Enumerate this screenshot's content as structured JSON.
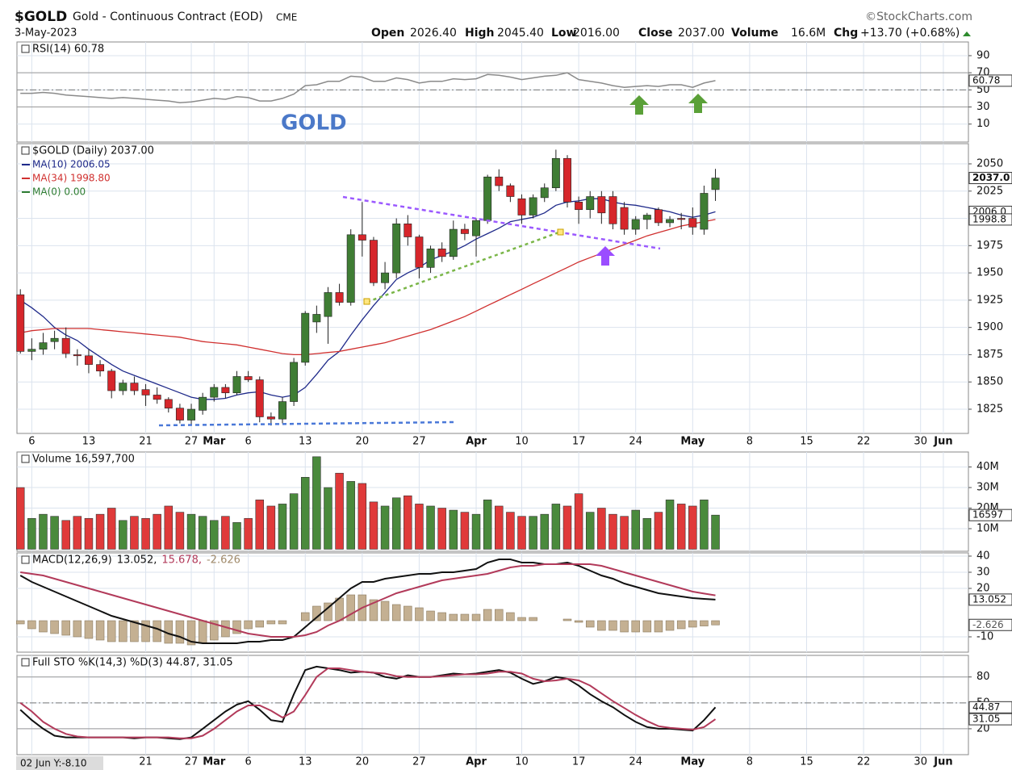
{
  "header": {
    "symbol": "$GOLD",
    "name": "Gold - Continuous Contract (EOD)",
    "exchange": "CME",
    "source": "©StockCharts.com",
    "date": "3-May-2023",
    "stats": [
      [
        "Open",
        "2026.40"
      ],
      [
        "High",
        "2045.40"
      ],
      [
        "Low",
        "2016.00"
      ],
      [
        "Close",
        "2037.00"
      ],
      [
        "Volume",
        "16.6M"
      ],
      [
        "Chg",
        "+13.70 (+0.68%)"
      ]
    ],
    "cursor_label": "02 Jun Y:-8.10"
  },
  "chart_data": [
    {
      "type": "line",
      "title": "RSI(14) 60.78",
      "annotation": "GOLD",
      "color": "#8a8a8a",
      "box": "60.78",
      "values": [
        46,
        46,
        47,
        46,
        44,
        43,
        42,
        41,
        40,
        41,
        40,
        39,
        38,
        37,
        35,
        36,
        38,
        40,
        39,
        42,
        41,
        37,
        37,
        40,
        45,
        55,
        56,
        60,
        60,
        66,
        65,
        60,
        60,
        64,
        62,
        58,
        60,
        60,
        63,
        62,
        63,
        68,
        67,
        65,
        62,
        64,
        66,
        67,
        70,
        62,
        60,
        58,
        55,
        53,
        54,
        55,
        54,
        56,
        56,
        53,
        58,
        60.78
      ],
      "xlim": [
        -0.3,
        83.2
      ],
      "ylim": [
        -11,
        106
      ],
      "yticks": [
        90,
        70,
        50,
        30,
        10
      ],
      "hlines": [
        70,
        50,
        30
      ]
    },
    {
      "type": "candlestick",
      "title": "$GOLD (Daily) 2037.00",
      "up_color": "#3f7d34",
      "down_color": "#d6262b",
      "box": "2037.0",
      "open": [
        1930,
        1878,
        1880,
        1887,
        1890,
        1875,
        1874,
        1866,
        1860,
        1842,
        1849,
        1843,
        1838,
        1834,
        1826,
        1815,
        1824,
        1836,
        1845,
        1840,
        1855,
        1852,
        1818,
        1816,
        1832,
        1868,
        1905,
        1910,
        1932,
        1923,
        1985,
        1980,
        1941,
        1950,
        1995,
        1983,
        1955,
        1972,
        1965,
        1990,
        1984,
        1998,
        2038,
        2030,
        2018,
        2003,
        2019,
        2028,
        2055,
        2015,
        2008,
        2020,
        2020,
        2010,
        1990,
        1999,
        2008,
        1996,
        2000,
        2000,
        1990,
        2026.4
      ],
      "high": [
        1935,
        1890,
        1895,
        1897,
        1900,
        1880,
        1880,
        1870,
        1862,
        1852,
        1855,
        1848,
        1845,
        1836,
        1830,
        1830,
        1840,
        1848,
        1848,
        1860,
        1860,
        1855,
        1822,
        1836,
        1872,
        1915,
        1920,
        1937,
        1940,
        1990,
        2015,
        1983,
        1960,
        2000,
        2003,
        1985,
        1975,
        1978,
        1998,
        1995,
        2000,
        2040,
        2045,
        2032,
        2022,
        2022,
        2032,
        2063,
        2058,
        2020,
        2025,
        2025,
        2025,
        2015,
        2002,
        2005,
        2010,
        2002,
        2005,
        2010,
        2030,
        2045.4
      ],
      "low": [
        1876,
        1870,
        1875,
        1880,
        1872,
        1865,
        1858,
        1855,
        1835,
        1838,
        1838,
        1828,
        1830,
        1822,
        1812,
        1810,
        1820,
        1832,
        1835,
        1838,
        1850,
        1813,
        1810,
        1812,
        1828,
        1865,
        1895,
        1885,
        1920,
        1920,
        1965,
        1938,
        1935,
        1945,
        1975,
        1945,
        1950,
        1960,
        1962,
        1980,
        1965,
        1995,
        2025,
        2015,
        1995,
        2000,
        2015,
        2025,
        2010,
        1995,
        2000,
        1995,
        1990,
        1985,
        1985,
        1990,
        1993,
        1992,
        1990,
        1985,
        1985,
        2016
      ],
      "close": [
        1878,
        1880,
        1886,
        1890,
        1876,
        1874,
        1866,
        1860,
        1842,
        1849,
        1842,
        1838,
        1834,
        1826,
        1815,
        1825,
        1836,
        1845,
        1840,
        1855,
        1852,
        1818,
        1816,
        1832,
        1868,
        1913,
        1912,
        1932,
        1923,
        1985,
        1980,
        1941,
        1950,
        1995,
        1983,
        1955,
        1972,
        1965,
        1990,
        1986,
        1998,
        2038,
        2030,
        2020,
        2003,
        2019,
        2028,
        2055,
        2015,
        2008,
        2020,
        2005,
        1995,
        1990,
        1999,
        2003,
        1996,
        1999,
        1999,
        1992,
        2023,
        2037
      ],
      "series": [
        {
          "name": "MA(10) 2006.05",
          "color": "#1f2a8a",
          "box": "2006.0",
          "values": [
            1925,
            1918,
            1910,
            1900,
            1893,
            1888,
            1880,
            1873,
            1866,
            1860,
            1856,
            1852,
            1848,
            1844,
            1840,
            1836,
            1834,
            1834,
            1835,
            1838,
            1840,
            1841,
            1838,
            1836,
            1838,
            1845,
            1857,
            1870,
            1878,
            1893,
            1907,
            1920,
            1932,
            1944,
            1950,
            1955,
            1962,
            1966,
            1970,
            1975,
            1981,
            1986,
            1991,
            1997,
            1999,
            2001,
            2005,
            2012,
            2015,
            2016,
            2018,
            2018,
            2015,
            2013,
            2012,
            2010,
            2008,
            2006,
            2003,
            2001,
            2003,
            2006
          ]
        },
        {
          "name": "MA(34) 1998.80",
          "color": "#d0302f",
          "box": "1998.8",
          "values": [
            1895,
            1897,
            1898,
            1899,
            1899,
            1899,
            1899,
            1898,
            1897,
            1896,
            1895,
            1894,
            1893,
            1892,
            1891,
            1889,
            1887,
            1886,
            1885,
            1884,
            1882,
            1880,
            1878,
            1876,
            1875,
            1875,
            1876,
            1877,
            1878,
            1880,
            1882,
            1884,
            1886,
            1889,
            1892,
            1895,
            1898,
            1902,
            1906,
            1910,
            1915,
            1920,
            1925,
            1930,
            1935,
            1940,
            1945,
            1950,
            1955,
            1960,
            1964,
            1968,
            1972,
            1976,
            1980,
            1984,
            1987,
            1990,
            1993,
            1995,
            1997,
            1999
          ]
        }
      ],
      "legend_only": [
        {
          "name": "MA(0) 0.00",
          "color": "#2e7d32"
        }
      ],
      "xlim": [
        -0.3,
        83.2
      ],
      "ylim": [
        1802.8,
        2068.5
      ],
      "yticks": [
        2050,
        2025,
        2000,
        1975,
        1950,
        1925,
        1900,
        1875,
        1850,
        1825
      ],
      "xticks": [
        {
          "value": 1,
          "label": "6"
        },
        {
          "value": 6,
          "label": "13"
        },
        {
          "value": 11,
          "label": "21"
        },
        {
          "value": 15,
          "label": "27"
        },
        {
          "value": 17,
          "label": "Mar"
        },
        {
          "value": 20,
          "label": "6"
        },
        {
          "value": 25,
          "label": "13"
        },
        {
          "value": 30,
          "label": "20"
        },
        {
          "value": 35,
          "label": "27"
        },
        {
          "value": 40,
          "label": "Apr"
        },
        {
          "value": 44,
          "label": "10"
        },
        {
          "value": 49,
          "label": "17"
        },
        {
          "value": 54,
          "label": "24"
        },
        {
          "value": 59,
          "label": "May"
        },
        {
          "value": 64,
          "label": "8"
        },
        {
          "value": 69,
          "label": "15"
        },
        {
          "value": 74,
          "label": "22"
        },
        {
          "value": 79,
          "label": "30"
        },
        {
          "value": 81,
          "label": "Jun"
        }
      ]
    },
    {
      "type": "bar",
      "title": "Volume 16,597,700",
      "up_color": "#4a8a3c",
      "down_color": "#e03a3a",
      "box": "16597",
      "values": [
        30000000,
        15000000,
        17000000,
        16000000,
        14000000,
        16000000,
        15000000,
        17000000,
        20000000,
        14000000,
        16000000,
        15000000,
        17000000,
        21000000,
        18000000,
        17000000,
        16000000,
        14000000,
        16000000,
        13000000,
        15000000,
        24000000,
        21000000,
        22000000,
        27000000,
        35000000,
        45000000,
        30000000,
        37000000,
        33000000,
        32000000,
        23000000,
        21000000,
        25000000,
        26000000,
        22000000,
        21000000,
        20000000,
        19000000,
        18000000,
        17000000,
        24000000,
        21000000,
        18000000,
        16000000,
        16000000,
        17000000,
        22000000,
        21000000,
        27000000,
        18000000,
        20000000,
        17000000,
        16000000,
        19000000,
        15000000,
        18000000,
        24000000,
        22000000,
        21000000,
        24000000,
        16597700
      ],
      "xlim": [
        -0.3,
        83.2
      ],
      "ylim": [
        -1000000,
        47300000
      ],
      "yticks": [
        {
          "value": 40000000,
          "label": "40M"
        },
        {
          "value": 30000000,
          "label": "30M"
        },
        {
          "value": 20000000,
          "label": "20M"
        },
        {
          "value": 10000000,
          "label": "10M"
        }
      ]
    },
    {
      "type": "line",
      "title": "MACD(12,26,9)",
      "series": [
        {
          "name": "-2.626",
          "color": "#c4b092",
          "style": "bar",
          "box": "-2.626",
          "values": [
            -2,
            -5,
            -7,
            -8,
            -9,
            -10,
            -11,
            -12,
            -13,
            -13,
            -13,
            -13,
            -13,
            -14,
            -14,
            -15,
            -14,
            -12,
            -10,
            -8,
            -5,
            -4,
            -2,
            -2,
            0,
            5,
            9,
            11,
            14,
            16,
            16,
            13,
            12,
            10,
            9,
            8,
            6,
            5,
            4,
            4,
            4,
            7,
            7,
            5,
            2,
            2,
            0,
            0,
            1,
            -1,
            -4,
            -6,
            -6,
            -7,
            -7,
            -7,
            -7,
            -6,
            -5,
            -4,
            -3.3,
            -2.626
          ]
        },
        {
          "name": "13.052,",
          "color": "#111111",
          "box": "13.052",
          "values": [
            28,
            24,
            21,
            18,
            15,
            12,
            9,
            6,
            3,
            1,
            -1,
            -3,
            -5,
            -8,
            -10,
            -13,
            -14,
            -14,
            -14,
            -14,
            -13,
            -13,
            -12,
            -12,
            -10,
            -4,
            2,
            8,
            14,
            20,
            24,
            24,
            26,
            27,
            28,
            29,
            29,
            30,
            30,
            31,
            32,
            36,
            38,
            38,
            36,
            36,
            35,
            35,
            36,
            34,
            31,
            28,
            26,
            23,
            21,
            19,
            17,
            16,
            15,
            14,
            13.5,
            13.052
          ]
        },
        {
          "name": "15.678,",
          "color": "#b23a5a",
          "values": [
            30,
            29,
            28,
            26,
            24,
            22,
            20,
            18,
            16,
            14,
            12,
            10,
            8,
            6,
            4,
            2,
            0,
            -2,
            -4,
            -6,
            -8,
            -9,
            -10,
            -10,
            -10,
            -9,
            -7,
            -3,
            0,
            4,
            8,
            11,
            14,
            17,
            19,
            21,
            23,
            25,
            26,
            27,
            28,
            29,
            31,
            33,
            34,
            34,
            35,
            35,
            35,
            35,
            35,
            34,
            32,
            30,
            28,
            26,
            24,
            22,
            20,
            18,
            16.8,
            15.678
          ]
        }
      ],
      "xlim": [
        -0.3,
        83.2
      ],
      "ylim": [
        -19.5,
        42
      ],
      "yticks": [
        40,
        30,
        20,
        -10
      ]
    },
    {
      "type": "line",
      "title": "Full STO %K(14,3) %D(3) 44.87, 31.05",
      "series": [
        {
          "color": "#111111",
          "box": "44.87",
          "values": [
            42,
            30,
            20,
            12,
            10,
            10,
            10,
            10,
            10,
            10,
            9,
            10,
            10,
            9,
            8,
            10,
            20,
            30,
            40,
            48,
            52,
            42,
            30,
            28,
            60,
            88,
            92,
            90,
            88,
            85,
            86,
            85,
            80,
            78,
            82,
            80,
            80,
            82,
            84,
            83,
            84,
            86,
            88,
            85,
            78,
            72,
            75,
            80,
            78,
            70,
            60,
            52,
            45,
            36,
            28,
            22,
            20,
            20,
            19,
            18,
            30,
            44.87
          ]
        },
        {
          "color": "#b23a5a",
          "box": "31.05",
          "values": [
            50,
            40,
            28,
            20,
            14,
            11,
            10,
            10,
            10,
            10,
            10,
            10,
            10,
            10,
            9,
            9,
            12,
            20,
            30,
            40,
            47,
            47,
            41,
            33,
            40,
            59,
            80,
            90,
            90,
            88,
            86,
            85,
            84,
            81,
            80,
            80,
            80,
            81,
            82,
            83,
            83,
            84,
            86,
            86,
            84,
            78,
            75,
            76,
            78,
            76,
            70,
            61,
            52,
            44,
            36,
            29,
            23,
            21,
            20,
            19,
            22,
            31.05
          ]
        }
      ],
      "xlim": [
        -0.3,
        83.2
      ],
      "ylim": [
        -10,
        105
      ],
      "yticks": [
        80,
        50,
        20
      ],
      "hlines": [
        80,
        50,
        20
      ],
      "xticks": [
        {
          "value": 11,
          "label": "21"
        },
        {
          "value": 15,
          "label": "27"
        },
        {
          "value": 17,
          "label": "Mar"
        },
        {
          "value": 20,
          "label": "6"
        },
        {
          "value": 25,
          "label": "13"
        },
        {
          "value": 30,
          "label": "20"
        },
        {
          "value": 35,
          "label": "27"
        },
        {
          "value": 40,
          "label": "Apr"
        },
        {
          "value": 44,
          "label": "10"
        },
        {
          "value": 49,
          "label": "17"
        },
        {
          "value": 54,
          "label": "24"
        },
        {
          "value": 59,
          "label": "May"
        },
        {
          "value": 64,
          "label": "8"
        },
        {
          "value": 69,
          "label": "15"
        },
        {
          "value": 74,
          "label": "22"
        },
        {
          "value": 79,
          "label": "30"
        },
        {
          "value": 81,
          "label": "Jun"
        }
      ]
    }
  ]
}
